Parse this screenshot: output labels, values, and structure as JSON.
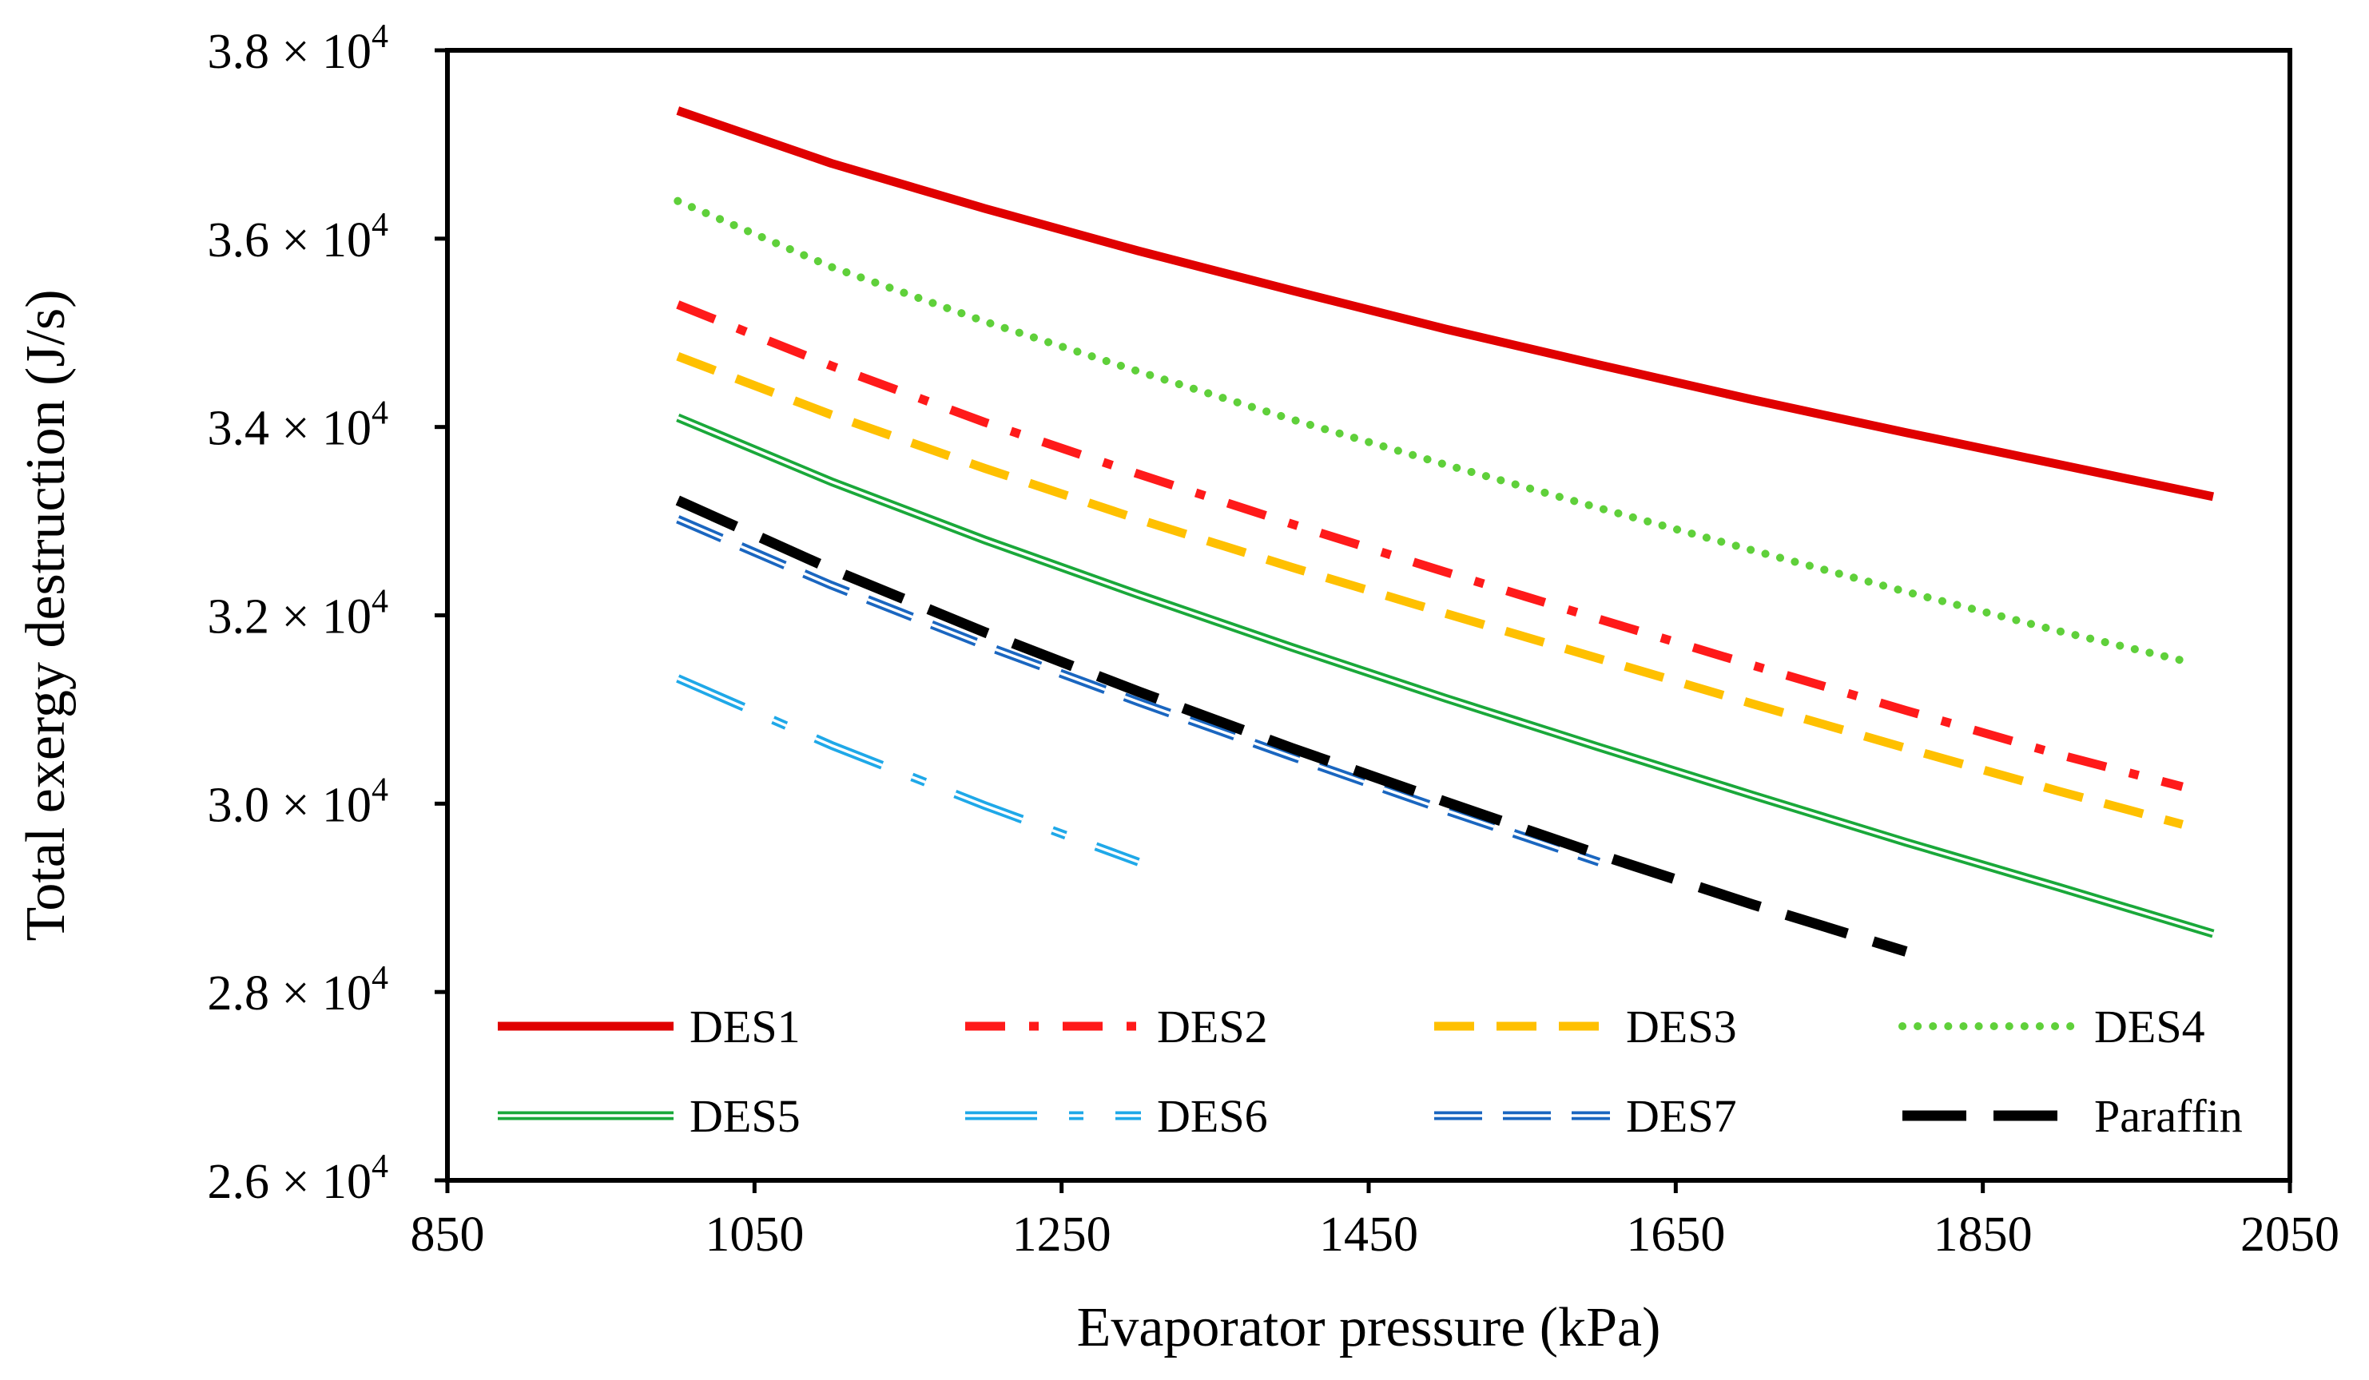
{
  "chart_data": {
    "type": "line",
    "title": "",
    "xlabel": "Evaporator pressure (kPa)",
    "ylabel": "Total exergy destruction (J/s)",
    "xlim": [
      850,
      2050
    ],
    "ylim": [
      26000,
      38000
    ],
    "xticks": [
      850,
      1050,
      1250,
      1450,
      1650,
      1850,
      2050
    ],
    "xtick_labels": [
      "850",
      "1050",
      "1250",
      "1450",
      "1650",
      "1850",
      "2050"
    ],
    "yticks": [
      {
        "value": 26000,
        "mantissa": "2.6",
        "times": "×",
        "base": "10",
        "exp": "4"
      },
      {
        "value": 28000,
        "mantissa": "2.8",
        "times": "×",
        "base": "10",
        "exp": "4"
      },
      {
        "value": 30000,
        "mantissa": "3.0",
        "times": "×",
        "base": "10",
        "exp": "4"
      },
      {
        "value": 32000,
        "mantissa": "3.2",
        "times": "×",
        "base": "10",
        "exp": "4"
      },
      {
        "value": 34000,
        "mantissa": "3.4",
        "times": "×",
        "base": "10",
        "exp": "4"
      },
      {
        "value": 36000,
        "mantissa": "3.6",
        "times": "×",
        "base": "10",
        "exp": "4"
      },
      {
        "value": 38000,
        "mantissa": "3.8",
        "times": "×",
        "base": "10",
        "exp": "4"
      }
    ],
    "grid": false,
    "legend_position": "bottom-inside",
    "series": [
      {
        "name": "DES1",
        "color": "#e00000",
        "style": "solid",
        "x": [
          1000,
          1100,
          1200,
          1300,
          1400,
          1500,
          1600,
          1700,
          1800,
          1900,
          2000
        ],
        "y": [
          37360,
          36800,
          36320,
          35870,
          35450,
          35040,
          34660,
          34290,
          33940,
          33600,
          33260
        ]
      },
      {
        "name": "DES2",
        "color": "#ff1a1a",
        "style": "dashdot",
        "x": [
          1000,
          1100,
          1200,
          1300,
          1400,
          1500,
          1600,
          1700,
          1800,
          1900,
          1980
        ],
        "y": [
          35300,
          34650,
          34050,
          33500,
          32970,
          32460,
          31960,
          31470,
          30990,
          30520,
          30180
        ]
      },
      {
        "name": "DES3",
        "color": "#ffc000",
        "style": "dashed",
        "x": [
          1000,
          1100,
          1200,
          1300,
          1400,
          1500,
          1600,
          1700,
          1800,
          1900,
          1980
        ],
        "y": [
          34750,
          34130,
          33560,
          33020,
          32510,
          32020,
          31540,
          31060,
          30590,
          30130,
          29780
        ]
      },
      {
        "name": "DES4",
        "color": "#5fd03a",
        "style": "dotted",
        "x": [
          1000,
          1100,
          1200,
          1300,
          1400,
          1500,
          1600,
          1700,
          1800,
          1900,
          1980
        ],
        "y": [
          36400,
          35700,
          35120,
          34590,
          34080,
          33600,
          33140,
          32690,
          32250,
          31830,
          31520
        ]
      },
      {
        "name": "DES5",
        "color": "#1aa83a",
        "style": "double",
        "x": [
          1000,
          1100,
          1200,
          1300,
          1400,
          1500,
          1600,
          1700,
          1800,
          1900,
          2000
        ],
        "y": [
          34100,
          33420,
          32800,
          32220,
          31660,
          31120,
          30600,
          30090,
          29590,
          29110,
          28620
        ]
      },
      {
        "name": "DES6",
        "color": "#1fa8e8",
        "style": "double-dashdot",
        "x": [
          1000,
          1100,
          1200,
          1300
        ],
        "y": [
          31330,
          30620,
          29980,
          29380
        ]
      },
      {
        "name": "DES7",
        "color": "#1a66c0",
        "style": "double-dashed",
        "x": [
          1000,
          1100,
          1200,
          1300,
          1400,
          1500,
          1600
        ],
        "y": [
          33020,
          32320,
          31680,
          31080,
          30500,
          29930,
          29380
        ]
      },
      {
        "name": "Paraffin",
        "color": "#000000",
        "style": "longdash",
        "x": [
          1000,
          1100,
          1200,
          1300,
          1400,
          1500,
          1600,
          1700,
          1800
        ],
        "y": [
          33220,
          32490,
          31820,
          31190,
          30590,
          30020,
          29460,
          28930,
          28430
        ]
      }
    ]
  }
}
